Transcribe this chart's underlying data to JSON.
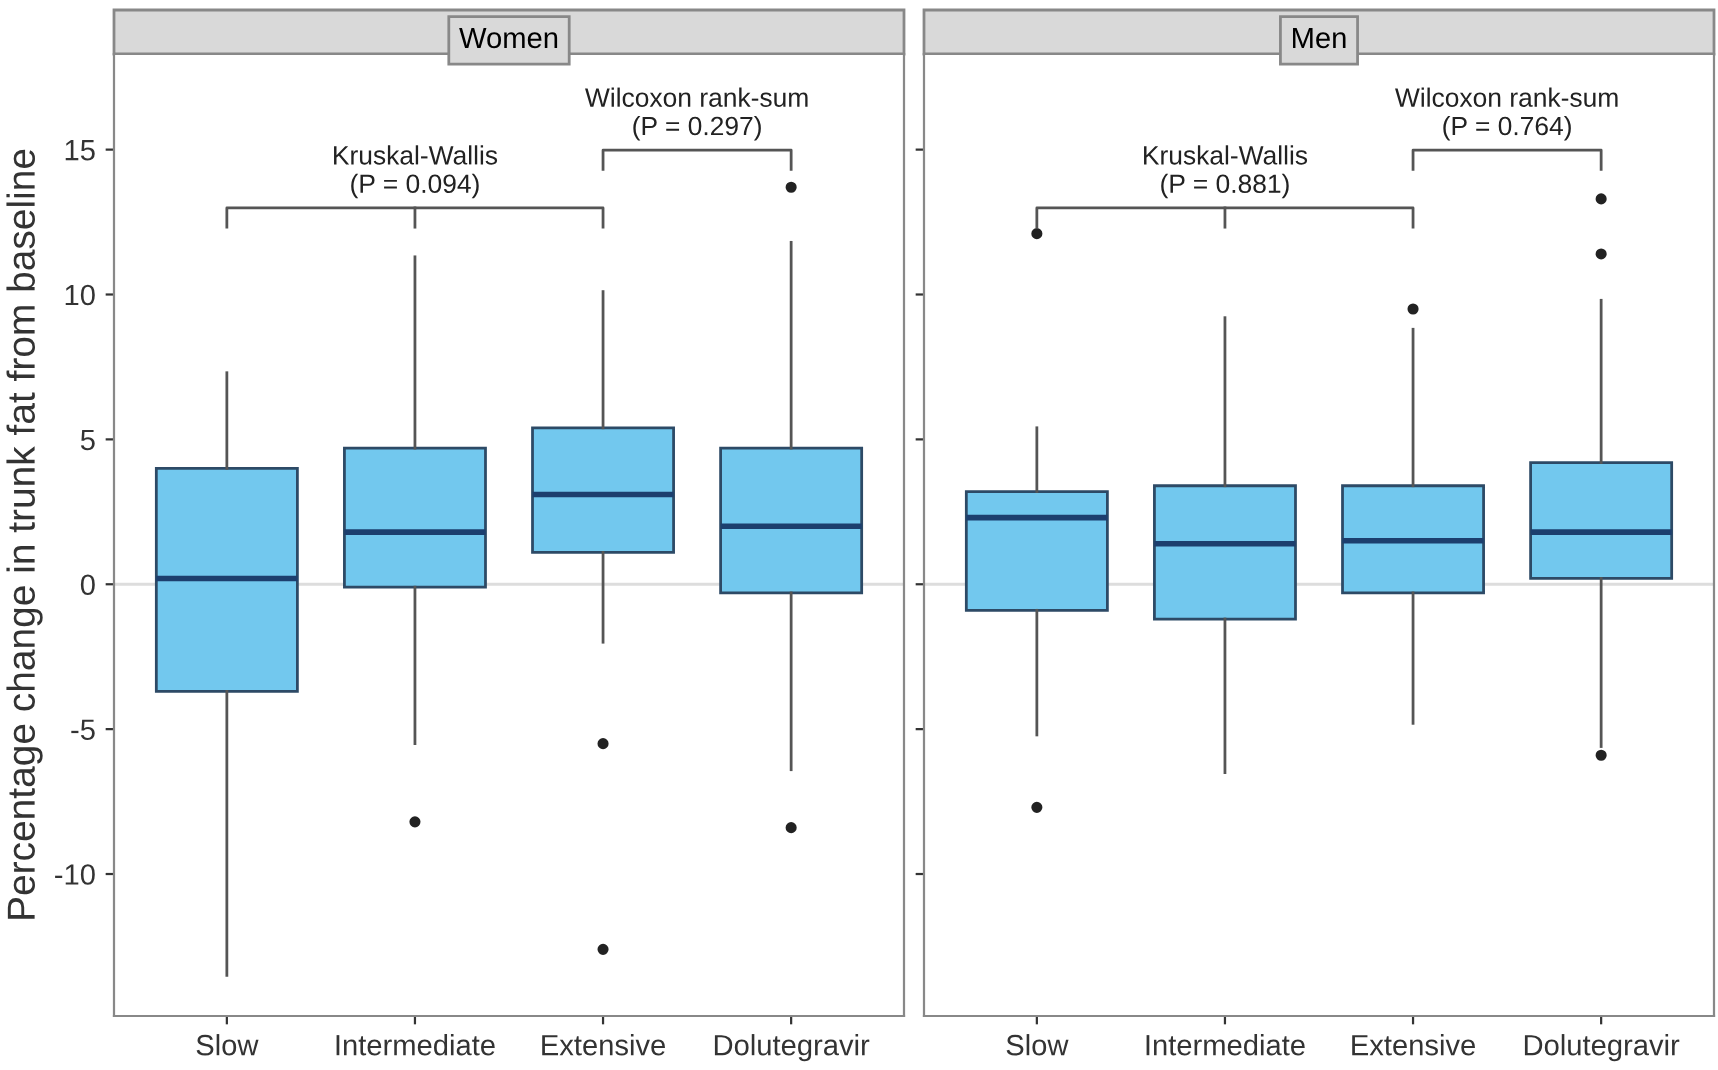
{
  "chart_data": [
    {
      "type": "box",
      "title": "Women",
      "ylabel": "Percentage change in trunk fat from baseline",
      "categories": [
        "Slow",
        "Intermediate",
        "Extensive",
        "Dolutegravir"
      ],
      "color": "#72c8ee",
      "boxes": [
        {
          "low": -13.5,
          "q1": -3.7,
          "median": 0.2,
          "q3": 4.0,
          "high": 7.3
        },
        {
          "low": -5.5,
          "q1": -0.1,
          "median": 1.8,
          "q3": 4.7,
          "high": 11.3,
          "outliers": [
            -8.2
          ]
        },
        {
          "low": -2.0,
          "q1": 1.1,
          "median": 3.1,
          "q3": 5.4,
          "high": 10.1,
          "outliers": [
            -5.5,
            -12.6
          ]
        },
        {
          "low": -6.4,
          "q1": -0.3,
          "median": 2.0,
          "q3": 4.7,
          "high": 11.8,
          "outliers": [
            13.7,
            -8.4
          ]
        }
      ],
      "ylim": [
        -14.9,
        18.3
      ],
      "yticks": [
        -10,
        -5,
        0,
        5,
        10,
        15
      ],
      "ref_lines": [
        {
          "axis": "y",
          "value": 0,
          "color": "#dddddd"
        }
      ],
      "annotations": [
        "Kruskal-Wallis\n(P = 0.094)",
        "Wilcoxon rank-sum\n(P = 0.297)"
      ]
    },
    {
      "type": "box",
      "title": "Men",
      "categories": [
        "Slow",
        "Intermediate",
        "Extensive",
        "Dolutegravir"
      ],
      "color": "#72c8ee",
      "boxes": [
        {
          "low": -5.2,
          "q1": -0.9,
          "median": 2.3,
          "q3": 3.2,
          "high": 5.4,
          "outliers": [
            12.1,
            -7.7
          ]
        },
        {
          "low": -6.5,
          "q1": -1.2,
          "median": 1.4,
          "q3": 3.4,
          "high": 9.2
        },
        {
          "low": -4.8,
          "q1": -0.3,
          "median": 1.5,
          "q3": 3.4,
          "high": 8.8,
          "outliers": [
            9.5
          ]
        },
        {
          "low": -5.6,
          "q1": 0.2,
          "median": 1.8,
          "q3": 4.2,
          "high": 9.8,
          "outliers": [
            13.3,
            11.4,
            -5.9
          ]
        }
      ],
      "ylim": [
        -14.9,
        18.3
      ],
      "yticks": [
        -10,
        -5,
        0,
        5,
        10,
        15
      ],
      "tick_labels": "x",
      "ref_lines": [
        {
          "axis": "y",
          "value": 0,
          "color": "#dddddd"
        }
      ],
      "annotations": [
        "Kruskal-Wallis\n(P = 0.881)",
        "Wilcoxon rank-sum\n(P = 0.764)"
      ]
    }
  ]
}
